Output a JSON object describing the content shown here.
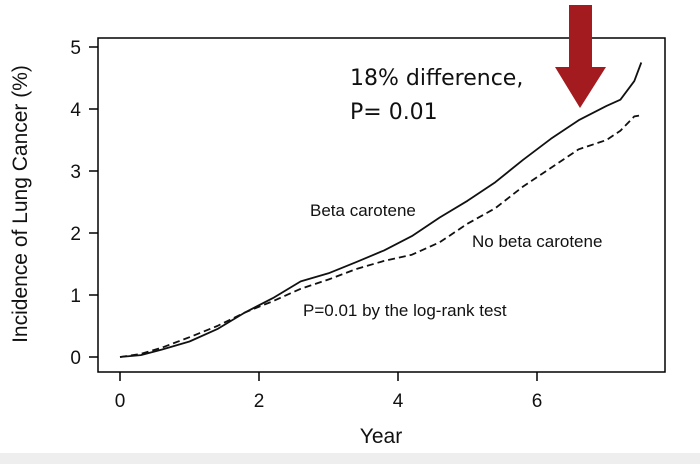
{
  "chart_data": {
    "type": "line",
    "title": "",
    "xlabel": "Year",
    "ylabel": "Incidence of Lung Cancer (%)",
    "xlim": [
      0,
      7.8
    ],
    "ylim": [
      0,
      5.1
    ],
    "xticks": [
      0,
      2,
      4,
      6
    ],
    "yticks": [
      0,
      1,
      2,
      3,
      4,
      5
    ],
    "grid": false,
    "series": [
      {
        "name": "Beta carotene",
        "style": "solid",
        "x": [
          0,
          0.3,
          0.6,
          1.0,
          1.4,
          1.8,
          2.2,
          2.6,
          3.0,
          3.4,
          3.8,
          4.2,
          4.6,
          5.0,
          5.4,
          5.8,
          6.2,
          6.6,
          7.0,
          7.2,
          7.4,
          7.5
        ],
        "y": [
          0,
          0.03,
          0.12,
          0.25,
          0.45,
          0.72,
          0.95,
          1.22,
          1.35,
          1.53,
          1.72,
          1.95,
          2.25,
          2.52,
          2.82,
          3.18,
          3.52,
          3.82,
          4.05,
          4.15,
          4.45,
          4.75
        ]
      },
      {
        "name": "No beta carotene",
        "style": "dashed",
        "x": [
          0,
          0.3,
          0.6,
          1.0,
          1.4,
          1.8,
          2.2,
          2.6,
          3.0,
          3.4,
          3.8,
          4.2,
          4.6,
          5.0,
          5.4,
          5.8,
          6.2,
          6.6,
          7.0,
          7.2,
          7.4,
          7.5
        ],
        "y": [
          0,
          0.05,
          0.15,
          0.32,
          0.5,
          0.72,
          0.9,
          1.1,
          1.25,
          1.42,
          1.55,
          1.65,
          1.85,
          2.15,
          2.4,
          2.75,
          3.05,
          3.35,
          3.5,
          3.65,
          3.88,
          3.9
        ]
      }
    ],
    "annotations": [
      "Beta carotene",
      "No beta carotene",
      "P=0.01 by the log-rank test"
    ]
  },
  "callout": {
    "line1": "18% difference,",
    "line2": "P= 0.01",
    "arrow_color": "#a31a1f"
  }
}
